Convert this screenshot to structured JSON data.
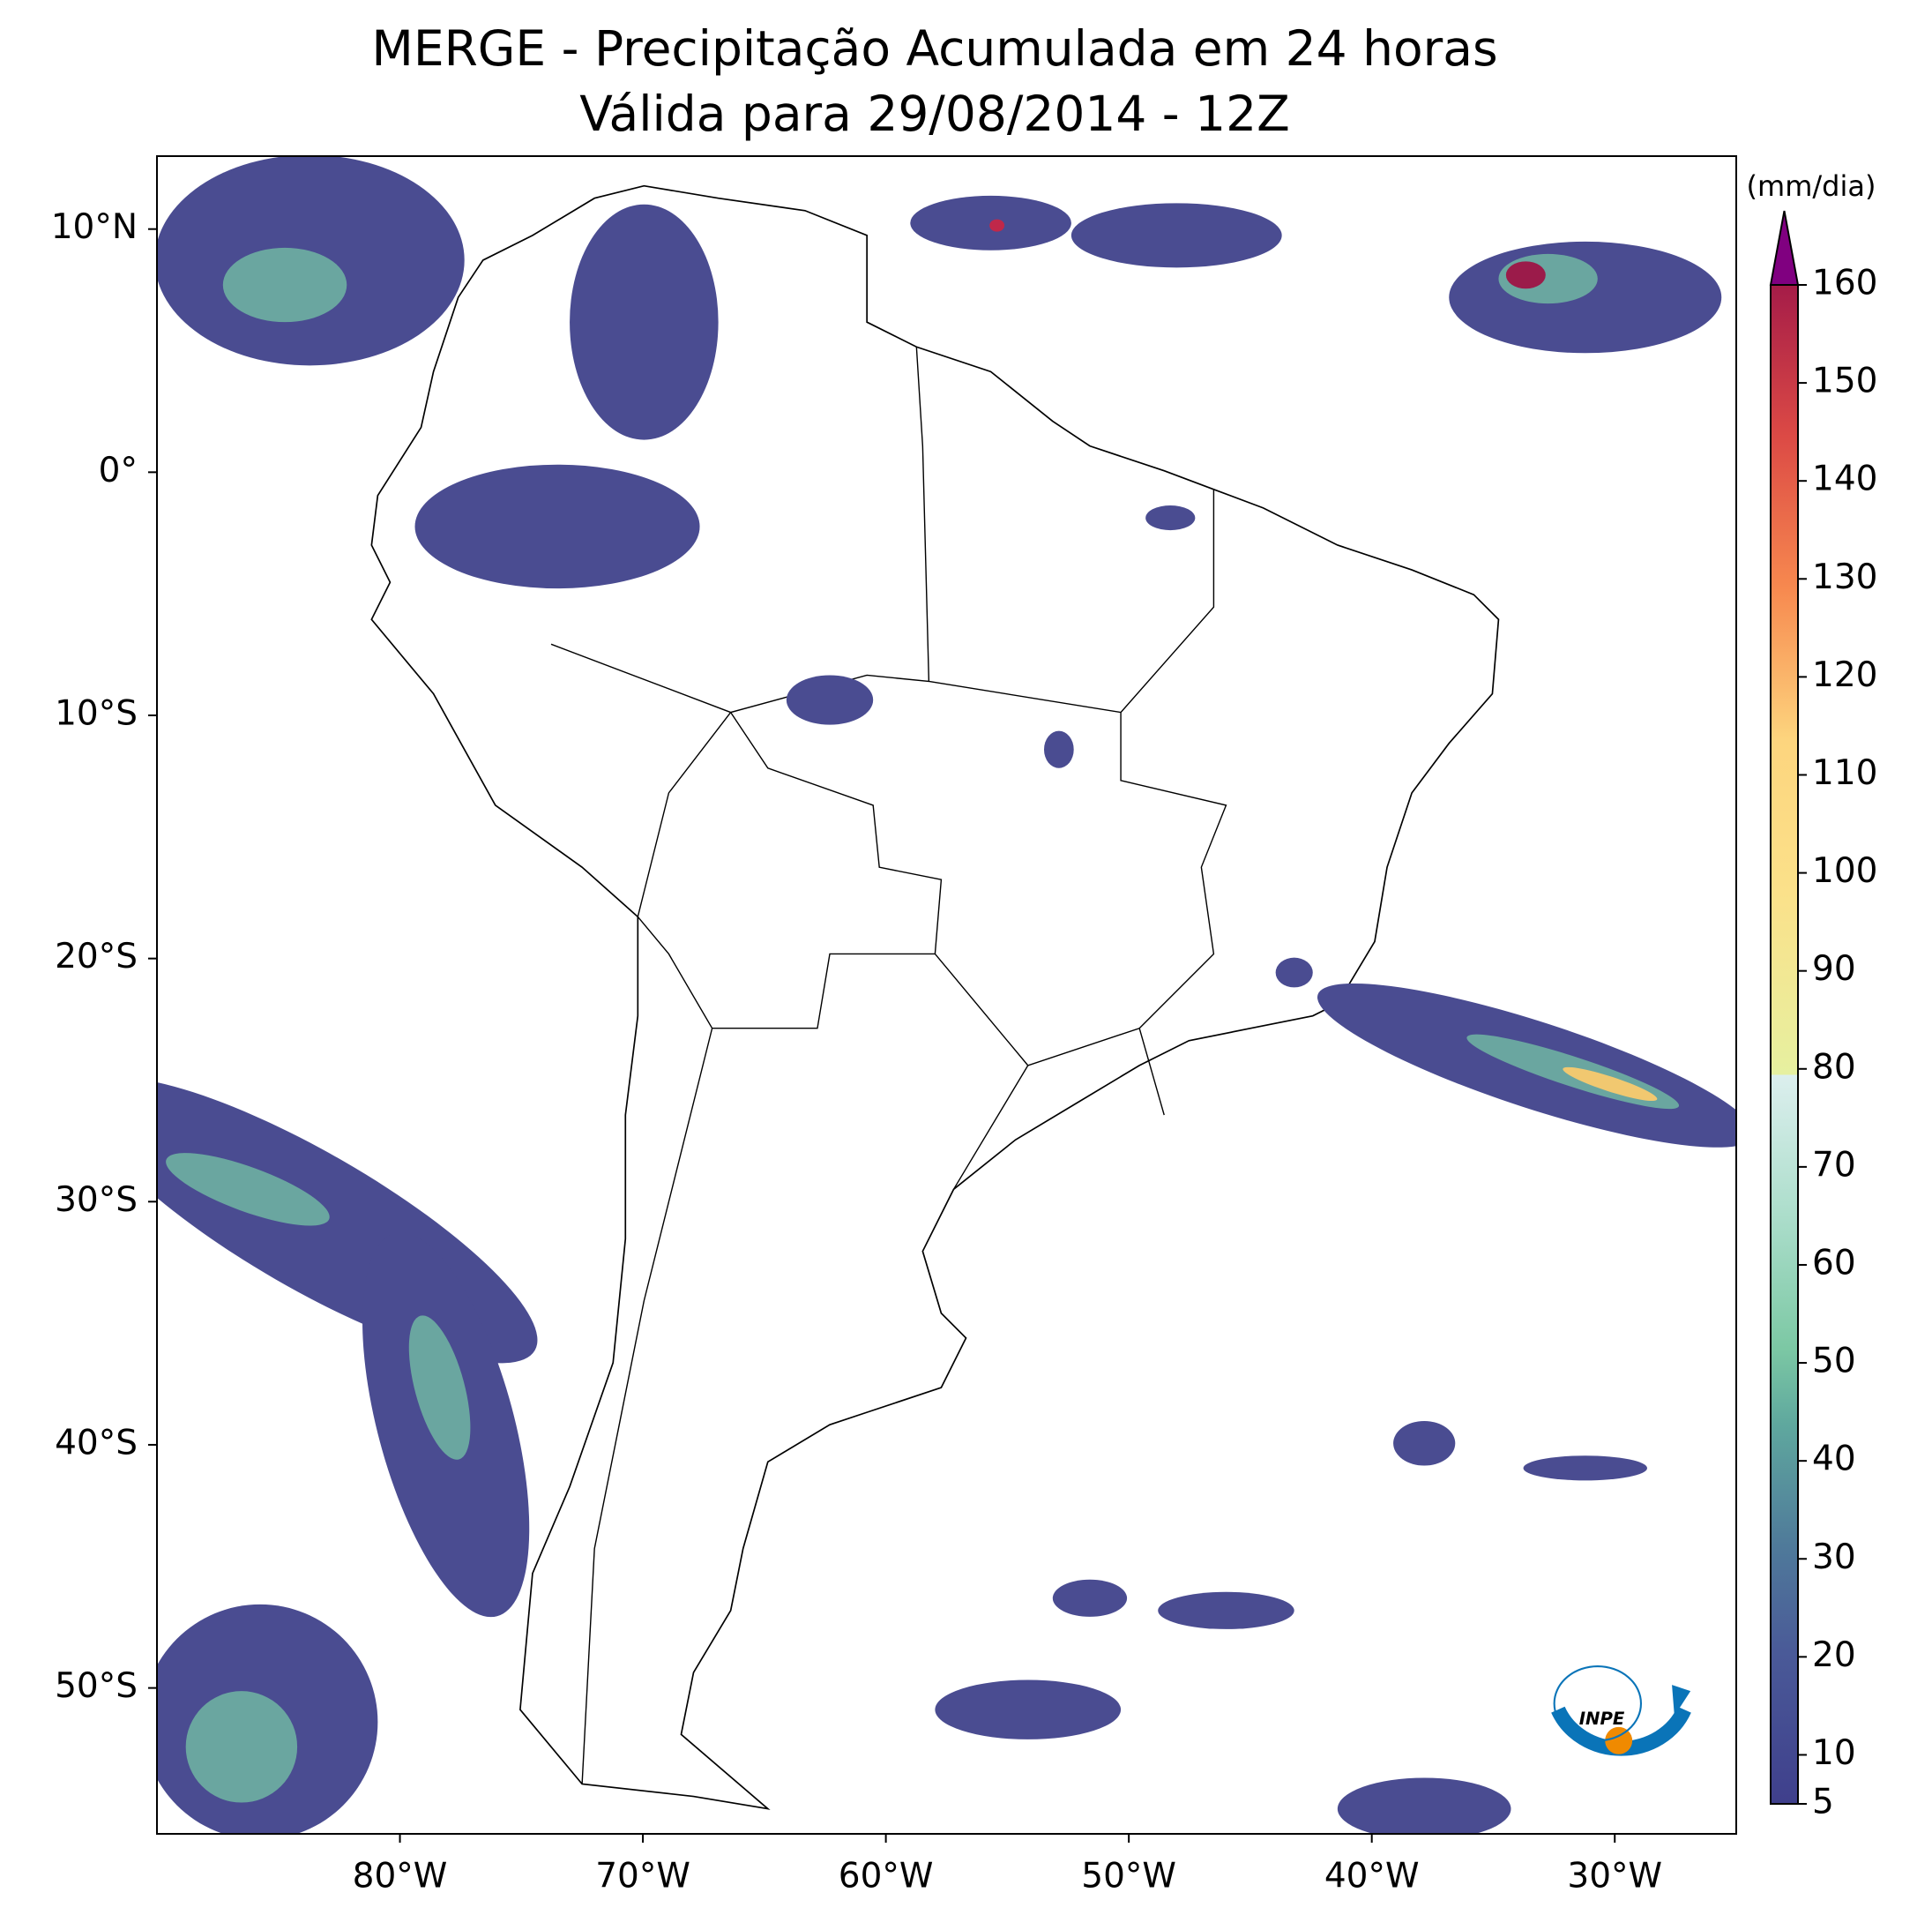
{
  "map": {
    "title": "MERGE - Precipitação Acumulada em 24 horas",
    "subtitle": "Válida para 29/08/2014 - 12Z",
    "xlim": [
      -90,
      -25
    ],
    "ylim": [
      -56,
      13
    ],
    "xticks": [
      {
        "value": -80,
        "label": "80°W"
      },
      {
        "value": -70,
        "label": "70°W"
      },
      {
        "value": -60,
        "label": "60°W"
      },
      {
        "value": -50,
        "label": "50°W"
      },
      {
        "value": -40,
        "label": "40°W"
      },
      {
        "value": -30,
        "label": "30°W"
      }
    ],
    "yticks": [
      {
        "value": 10,
        "label": "10°N"
      },
      {
        "value": 0,
        "label": "0°"
      },
      {
        "value": -10,
        "label": "10°S"
      },
      {
        "value": -20,
        "label": "20°S"
      },
      {
        "value": -30,
        "label": "30°S"
      },
      {
        "value": -40,
        "label": "40°S"
      },
      {
        "value": -50,
        "label": "50°S"
      }
    ],
    "colorbar": {
      "label": "(mm/dia)",
      "lim": [
        5,
        160
      ],
      "ticks": [
        5,
        10,
        20,
        30,
        40,
        50,
        60,
        70,
        80,
        90,
        100,
        110,
        120,
        130,
        140,
        150,
        160
      ]
    },
    "logo_text": "INPE"
  }
}
